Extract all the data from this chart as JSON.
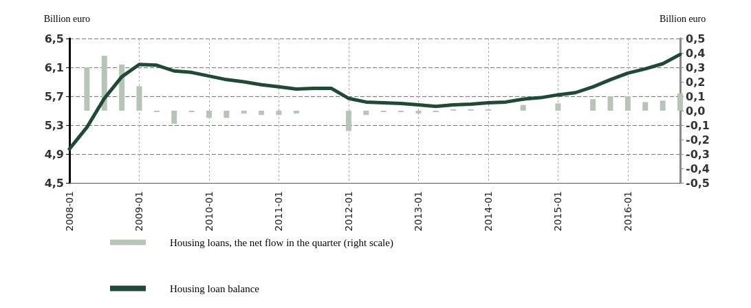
{
  "chart_data": {
    "type": "bar",
    "categories": [
      "2008-01",
      null,
      null,
      null,
      "2009-01",
      null,
      null,
      null,
      "2010-01",
      null,
      null,
      null,
      "2011-01",
      null,
      null,
      null,
      "2012-01",
      null,
      null,
      null,
      "2013-01",
      null,
      null,
      null,
      "2014-01",
      null,
      null,
      null,
      "2015-01",
      null,
      null,
      null,
      "2016-01",
      null,
      null,
      null
    ],
    "ylabel": "Billion euro",
    "y2label": "Billion euro",
    "series": [
      {
        "name": "Housing loans, the net flow in the quarter (right scale)",
        "axis": "y2",
        "color": "#b7c5b7",
        "values": [
          null,
          0.3,
          0.38,
          0.32,
          0.17,
          -0.01,
          -0.09,
          -0.01,
          -0.05,
          -0.05,
          -0.02,
          -0.03,
          -0.03,
          -0.02,
          0.0,
          null,
          -0.14,
          -0.03,
          -0.01,
          -0.01,
          -0.02,
          -0.01,
          0.01,
          0.01,
          0.01,
          0.0,
          0.04,
          0.0,
          0.05,
          0.0,
          0.08,
          0.1,
          0.1,
          0.06,
          0.07,
          0.12
        ]
      },
      {
        "name": "Housing loan balance",
        "type": "line",
        "color": "#1f4a36",
        "values": [
          4.97,
          5.27,
          5.67,
          5.97,
          6.14,
          6.13,
          6.05,
          6.03,
          5.98,
          5.93,
          5.9,
          5.86,
          5.83,
          5.8,
          5.81,
          5.81,
          5.67,
          5.62,
          5.61,
          5.6,
          5.58,
          5.56,
          5.58,
          5.59,
          5.61,
          5.62,
          5.66,
          5.68,
          5.72,
          5.75,
          5.83,
          5.93,
          6.02,
          6.08,
          6.15,
          6.28
        ]
      }
    ],
    "ylim": [
      4.5,
      6.5
    ],
    "yticks": [
      {
        "value": 4.5,
        "label": "4,5"
      },
      {
        "value": 4.9,
        "label": "4,9"
      },
      {
        "value": 5.3,
        "label": "5,3"
      },
      {
        "value": 5.7,
        "label": "5,7"
      },
      {
        "value": 6.1,
        "label": "6,1"
      },
      {
        "value": 6.5,
        "label": "6,5"
      }
    ],
    "y2lim": [
      -0.5,
      0.5
    ],
    "y2ticks": [
      {
        "value": -0.5,
        "label": "-0,5"
      },
      {
        "value": -0.4,
        "label": "-0,4"
      },
      {
        "value": -0.3,
        "label": "-0,3"
      },
      {
        "value": -0.2,
        "label": "-0,2"
      },
      {
        "value": -0.1,
        "label": "-0,1"
      },
      {
        "value": 0,
        "label": "0,0"
      },
      {
        "value": 0.1,
        "label": "0,1"
      },
      {
        "value": 0.2,
        "label": "0,2"
      },
      {
        "value": 0.3,
        "label": "0,3"
      },
      {
        "value": 0.4,
        "label": "0,4"
      },
      {
        "value": 0.5,
        "label": "0,5"
      }
    ],
    "grid": true,
    "legend": "bottom",
    "marker": "none",
    "line_style": "solid"
  }
}
